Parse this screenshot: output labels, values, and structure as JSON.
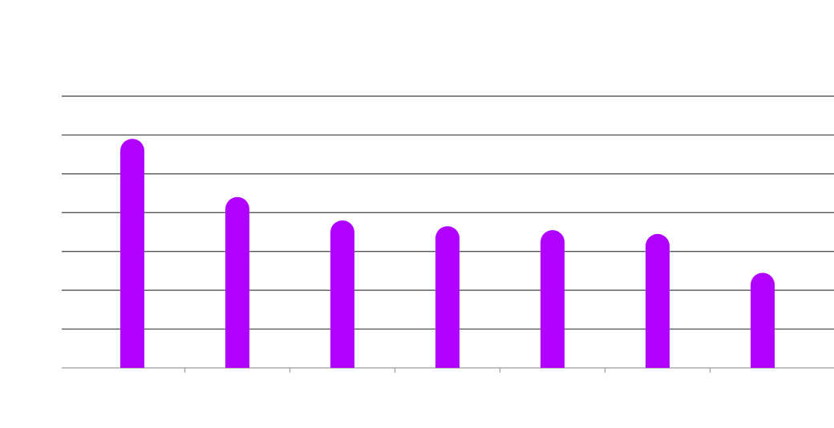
{
  "chart_data": {
    "type": "bar",
    "categories": [
      "",
      "",
      "",
      "",
      "",
      "",
      ""
    ],
    "values": [
      5.9,
      4.4,
      3.8,
      3.65,
      3.55,
      3.45,
      2.45
    ],
    "ylim": [
      0,
      7
    ],
    "grid": true,
    "bar_color": "#b000ff",
    "gridline_color": "#3f3f4a",
    "axis_color": "#9a9aa0",
    "rounded_bars": true,
    "legend": "none"
  }
}
